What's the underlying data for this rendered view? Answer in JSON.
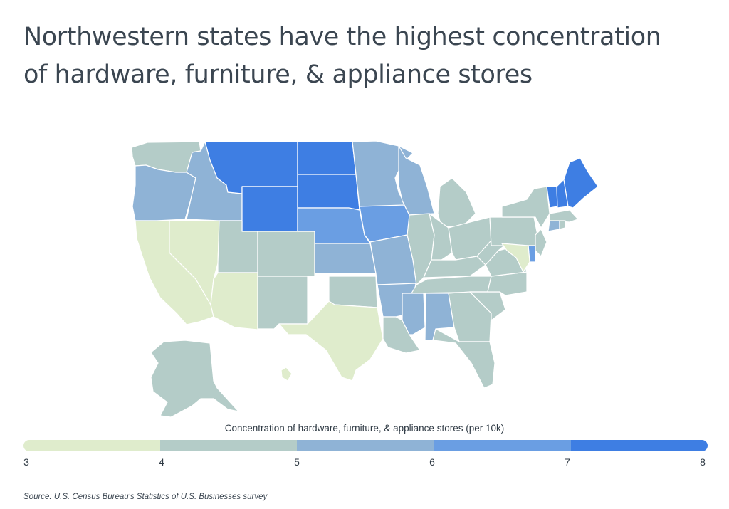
{
  "title_lines": [
    "Northwestern states have the highest concentration",
    "of hardware, furniture, & appliance stores"
  ],
  "legend": {
    "title": "Concentration of hardware, furniture, & appliance stores (per 10k)",
    "ticks": [
      "3",
      "4",
      "5",
      "6",
      "7",
      "8"
    ],
    "bins": [
      {
        "min": 3,
        "max": 4,
        "color": "#dfeccc"
      },
      {
        "min": 4,
        "max": 5,
        "color": "#b4ccc8"
      },
      {
        "min": 5,
        "max": 6,
        "color": "#8fb3d6"
      },
      {
        "min": 6,
        "max": 7,
        "color": "#6a9ee3"
      },
      {
        "min": 7,
        "max": 8,
        "color": "#3e7ee3"
      }
    ]
  },
  "source": "Source:  U.S. Census Bureau's Statistics of U.S. Businesses survey",
  "map_data": {
    "value_unit": "stores per 10k residents (binned)",
    "states": {
      "WA": 4,
      "OR": 5,
      "CA": 3,
      "NV": 3,
      "ID": 5,
      "MT": 7,
      "WY": 7,
      "UT": 4,
      "AZ": 3,
      "CO": 4,
      "NM": 4,
      "ND": 7,
      "SD": 7,
      "NE": 6,
      "KS": 5,
      "OK": 4,
      "TX": 3,
      "MN": 5,
      "IA": 6,
      "MO": 5,
      "AR": 5,
      "LA": 4,
      "WI": 5,
      "IL": 4,
      "MI": 4,
      "IN": 4,
      "OH": 4,
      "KY": 4,
      "TN": 4,
      "MS": 5,
      "AL": 5,
      "GA": 4,
      "FL": 4,
      "SC": 4,
      "NC": 4,
      "VA": 4,
      "WV": 4,
      "PA": 4,
      "NY": 4,
      "VT": 7,
      "NH": 7,
      "ME": 7,
      "MA": 4,
      "CT": 5,
      "RI": 4,
      "NJ": 4,
      "DE": 6,
      "MD": 3,
      "AK": 4,
      "HI": 3
    }
  }
}
